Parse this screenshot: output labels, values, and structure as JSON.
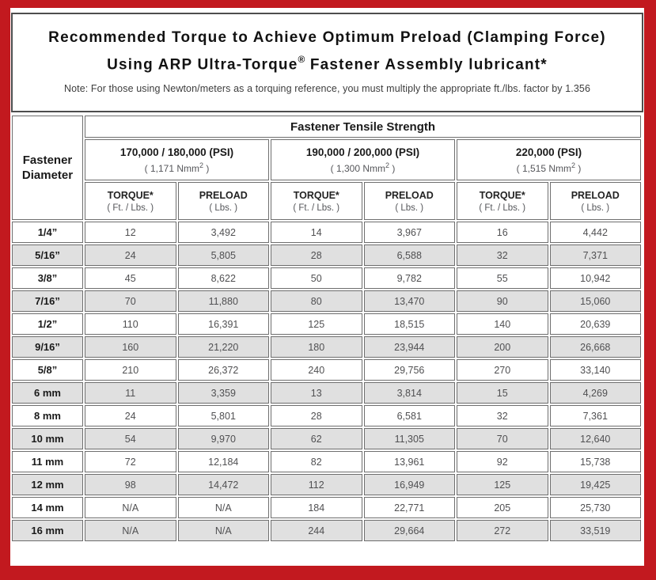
{
  "colors": {
    "frame_red": "#c2191f",
    "cell_gray": "#e0e0e0",
    "cell_border_gray": "#6e6e6e",
    "title_box_border": "#4d4d4d"
  },
  "title": {
    "line1": "Recommended Torque to Achieve Optimum Preload (Clamping Force)",
    "line2_prefix": "Using ARP Ultra-Torque",
    "line2_reg": "®",
    "line2_suffix": " Fastener Assembly lubricant*",
    "note": "Note: For those using Newton/meters as a torquing reference, you must multiply the appropriate ft./lbs. factor by 1.356"
  },
  "table": {
    "corner_header": {
      "line1": "Fastener",
      "line2": "Diameter"
    },
    "group_header": "Fastener Tensile Strength",
    "strength_groups": [
      {
        "psi": "170,000 / 180,000 (PSI)",
        "nmm_pre": "( 1,171 Nmm",
        "nmm_sup": "2",
        "nmm_post": " )"
      },
      {
        "psi": "190,000 / 200,000 (PSI)",
        "nmm_pre": "( 1,300 Nmm",
        "nmm_sup": "2",
        "nmm_post": " )"
      },
      {
        "psi": "220,000 (PSI)",
        "nmm_pre": "( 1,515 Nmm",
        "nmm_sup": "2",
        "nmm_post": " )"
      }
    ],
    "column_headers": [
      {
        "label": "TORQUE*",
        "unit": "( Ft. / Lbs. )"
      },
      {
        "label": "PRELOAD",
        "unit": "( Lbs. )"
      }
    ],
    "rows": [
      {
        "diameter": "1/4”",
        "values": [
          "12",
          "3,492",
          "14",
          "3,967",
          "16",
          "4,442"
        ]
      },
      {
        "diameter": "5/16”",
        "values": [
          "24",
          "5,805",
          "28",
          "6,588",
          "32",
          "7,371"
        ]
      },
      {
        "diameter": "3/8”",
        "values": [
          "45",
          "8,622",
          "50",
          "9,782",
          "55",
          "10,942"
        ]
      },
      {
        "diameter": "7/16”",
        "values": [
          "70",
          "11,880",
          "80",
          "13,470",
          "90",
          "15,060"
        ]
      },
      {
        "diameter": "1/2”",
        "values": [
          "110",
          "16,391",
          "125",
          "18,515",
          "140",
          "20,639"
        ]
      },
      {
        "diameter": "9/16”",
        "values": [
          "160",
          "21,220",
          "180",
          "23,944",
          "200",
          "26,668"
        ]
      },
      {
        "diameter": "5/8”",
        "values": [
          "210",
          "26,372",
          "240",
          "29,756",
          "270",
          "33,140"
        ]
      },
      {
        "diameter": "6 mm",
        "values": [
          "11",
          "3,359",
          "13",
          "3,814",
          "15",
          "4,269"
        ]
      },
      {
        "diameter": "8 mm",
        "values": [
          "24",
          "5,801",
          "28",
          "6,581",
          "32",
          "7,361"
        ]
      },
      {
        "diameter": "10 mm",
        "values": [
          "54",
          "9,970",
          "62",
          "11,305",
          "70",
          "12,640"
        ]
      },
      {
        "diameter": "11 mm",
        "values": [
          "72",
          "12,184",
          "82",
          "13,961",
          "92",
          "15,738"
        ]
      },
      {
        "diameter": "12 mm",
        "values": [
          "98",
          "14,472",
          "112",
          "16,949",
          "125",
          "19,425"
        ]
      },
      {
        "diameter": "14 mm",
        "values": [
          "N/A",
          "N/A",
          "184",
          "22,771",
          "205",
          "25,730"
        ]
      },
      {
        "diameter": "16 mm",
        "values": [
          "N/A",
          "N/A",
          "244",
          "29,664",
          "272",
          "33,519"
        ]
      }
    ]
  }
}
